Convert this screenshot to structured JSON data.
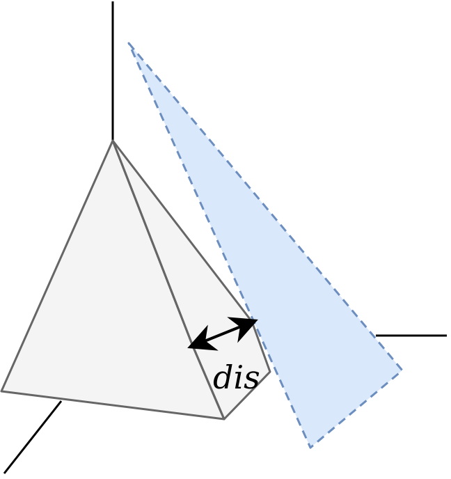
{
  "diagram": {
    "distance_label": "dis",
    "colors": {
      "axis": "#000000",
      "tetrahedron_fill": "#f4f4f4",
      "tetrahedron_stroke": "#666666",
      "plane_fill": "#dae8fc",
      "plane_stroke": "#6c8ebf",
      "arrow": "#000000"
    }
  }
}
